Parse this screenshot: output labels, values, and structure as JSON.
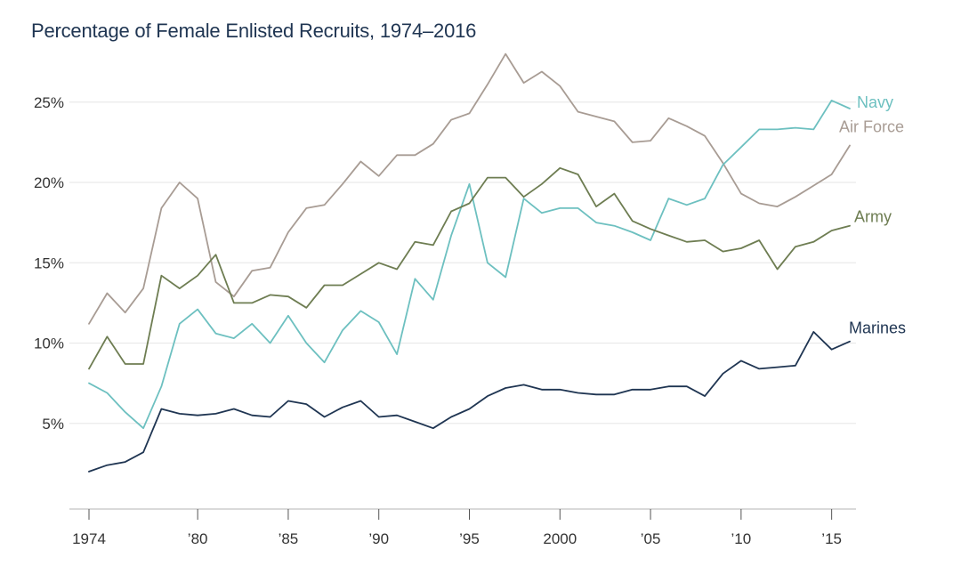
{
  "title": "Percentage of Female Enlisted Recruits, 1974–2016",
  "chart_data": {
    "type": "line",
    "title": "Percentage of Female Enlisted Recruits, 1974–2016",
    "xlabel": "",
    "ylabel": "",
    "xlim": [
      1974,
      2016
    ],
    "ylim": [
      0,
      28
    ],
    "y_ticks": [
      {
        "value": 5,
        "label": "5%"
      },
      {
        "value": 10,
        "label": "10%"
      },
      {
        "value": 15,
        "label": "15%"
      },
      {
        "value": 20,
        "label": "20%"
      },
      {
        "value": 25,
        "label": "25%"
      }
    ],
    "x_ticks": [
      {
        "value": 1974,
        "label": "1974"
      },
      {
        "value": 1980,
        "label": "’80"
      },
      {
        "value": 1985,
        "label": "’85"
      },
      {
        "value": 1990,
        "label": "’90"
      },
      {
        "value": 1995,
        "label": "’95"
      },
      {
        "value": 2000,
        "label": "2000"
      },
      {
        "value": 2005,
        "label": "’05"
      },
      {
        "value": 2010,
        "label": "’10"
      },
      {
        "value": 2015,
        "label": "’15"
      }
    ],
    "grid": "horizontal",
    "x": [
      1974,
      1975,
      1976,
      1977,
      1978,
      1979,
      1980,
      1981,
      1982,
      1983,
      1984,
      1985,
      1986,
      1987,
      1988,
      1989,
      1990,
      1991,
      1992,
      1993,
      1994,
      1995,
      1996,
      1997,
      1998,
      1999,
      2000,
      2001,
      2002,
      2003,
      2004,
      2005,
      2006,
      2007,
      2008,
      2009,
      2010,
      2011,
      2012,
      2013,
      2014,
      2015,
      2016
    ],
    "series": [
      {
        "name": "Air Force",
        "color": "#a89c94",
        "values": [
          11.2,
          13.1,
          11.9,
          13.4,
          18.4,
          20.0,
          19.0,
          13.8,
          12.9,
          14.5,
          14.7,
          16.9,
          18.4,
          18.6,
          19.9,
          21.3,
          20.4,
          21.7,
          21.7,
          22.4,
          23.9,
          24.3,
          26.1,
          28.0,
          26.2,
          26.9,
          26.0,
          24.4,
          24.1,
          23.8,
          22.5,
          22.6,
          24.0,
          23.5,
          22.9,
          21.2,
          19.3,
          18.7,
          18.5,
          19.1,
          19.8,
          20.5,
          22.3
        ]
      },
      {
        "name": "Navy",
        "color": "#6dc0c0",
        "values": [
          7.5,
          6.9,
          5.7,
          4.7,
          7.3,
          11.2,
          12.1,
          10.6,
          10.3,
          11.2,
          10.0,
          11.7,
          10.0,
          8.8,
          10.8,
          12.0,
          11.3,
          9.3,
          14.0,
          12.7,
          16.7,
          19.9,
          15.0,
          14.1,
          19.0,
          18.1,
          18.4,
          18.4,
          17.5,
          17.3,
          16.9,
          16.4,
          19.0,
          18.6,
          19.0,
          21.1,
          22.2,
          23.3,
          23.3,
          23.4,
          23.3,
          25.1,
          24.6
        ]
      },
      {
        "name": "Army",
        "color": "#6e7d52",
        "values": [
          8.4,
          10.4,
          8.7,
          8.7,
          14.2,
          13.4,
          14.2,
          15.5,
          12.5,
          12.5,
          13.0,
          12.9,
          12.2,
          13.6,
          13.6,
          14.3,
          15.0,
          14.6,
          16.3,
          16.1,
          18.2,
          18.7,
          20.3,
          20.3,
          19.1,
          19.9,
          20.9,
          20.5,
          18.5,
          19.3,
          17.6,
          17.1,
          16.7,
          16.3,
          16.4,
          15.7,
          15.9,
          16.4,
          14.6,
          16.0,
          16.3,
          17.0,
          17.3
        ]
      },
      {
        "name": "Marines",
        "color": "#1f3552",
        "values": [
          2.0,
          2.4,
          2.6,
          3.2,
          5.9,
          5.6,
          5.5,
          5.6,
          5.9,
          5.5,
          5.4,
          6.4,
          6.2,
          5.4,
          6.0,
          6.4,
          5.4,
          5.5,
          5.1,
          4.7,
          5.4,
          5.9,
          6.7,
          7.2,
          7.4,
          7.1,
          7.1,
          6.9,
          6.8,
          6.8,
          7.1,
          7.1,
          7.3,
          7.3,
          6.7,
          8.1,
          8.9,
          8.4,
          8.5,
          8.6,
          10.7,
          9.6,
          10.1
        ]
      }
    ]
  }
}
